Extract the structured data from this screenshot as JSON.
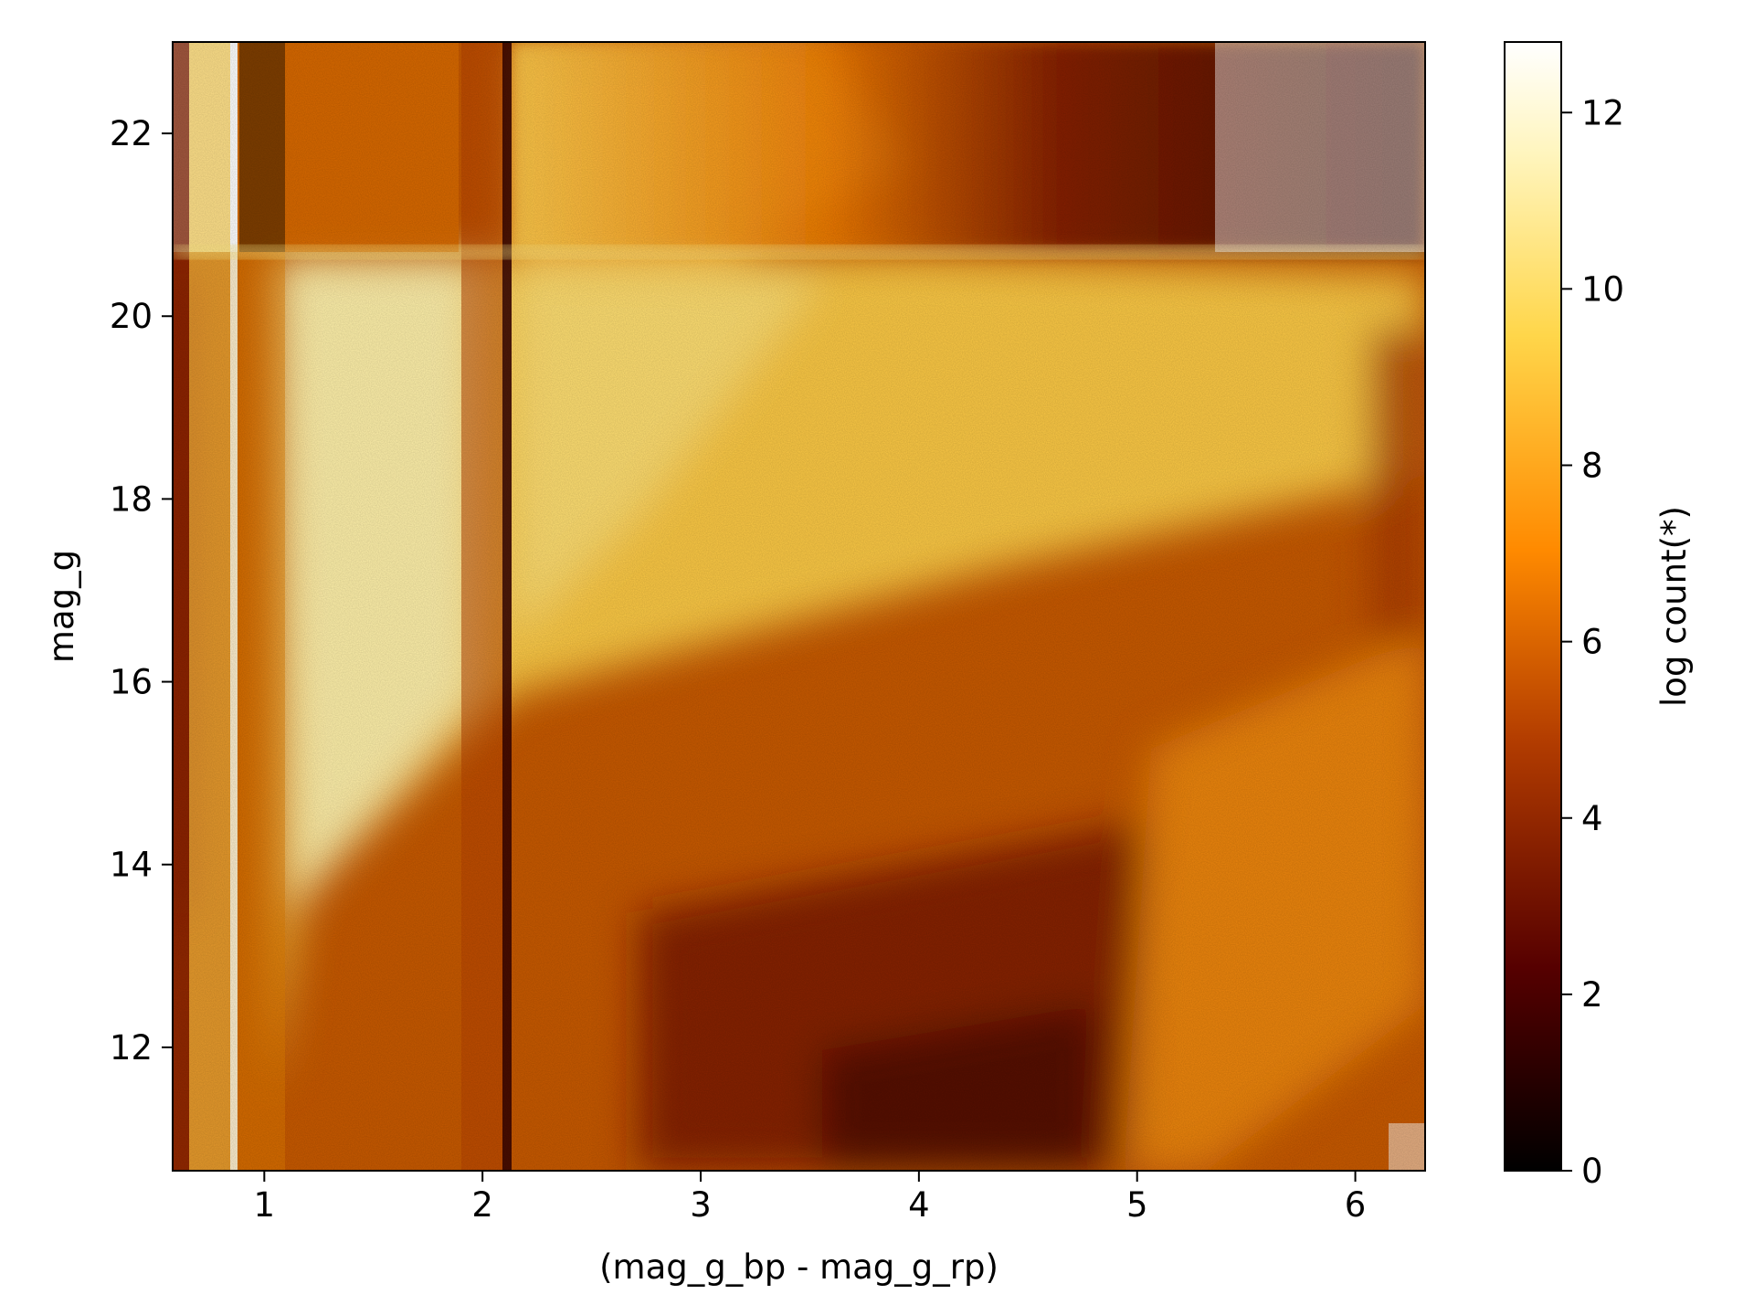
{
  "chart_data": {
    "type": "heatmap",
    "xlabel": "(mag_g_bp - mag_g_rp)",
    "ylabel": "mag_g",
    "xlim": [
      0.58,
      6.32
    ],
    "ylim": [
      10.65,
      23.0
    ],
    "xticks": [
      1,
      2,
      3,
      4,
      5,
      6
    ],
    "yticks": [
      12,
      14,
      16,
      18,
      20,
      22
    ],
    "colorbar": {
      "label": "log count(*)",
      "range": [
        0,
        12.8
      ],
      "ticks": [
        0,
        2,
        4,
        6,
        8,
        10,
        12
      ],
      "colormap": "afmhot",
      "colors": [
        "#000000",
        "#560000",
        "#b23c00",
        "#ff8a00",
        "#ffd64a",
        "#fff5bd",
        "#ffffff"
      ]
    },
    "grid": false,
    "features": {
      "density_break_mag_g": 20.7,
      "dark_color_lines": [
        0.87,
        2.12
      ],
      "sparse_top_right": true,
      "sparse_bottom_right": true
    }
  }
}
